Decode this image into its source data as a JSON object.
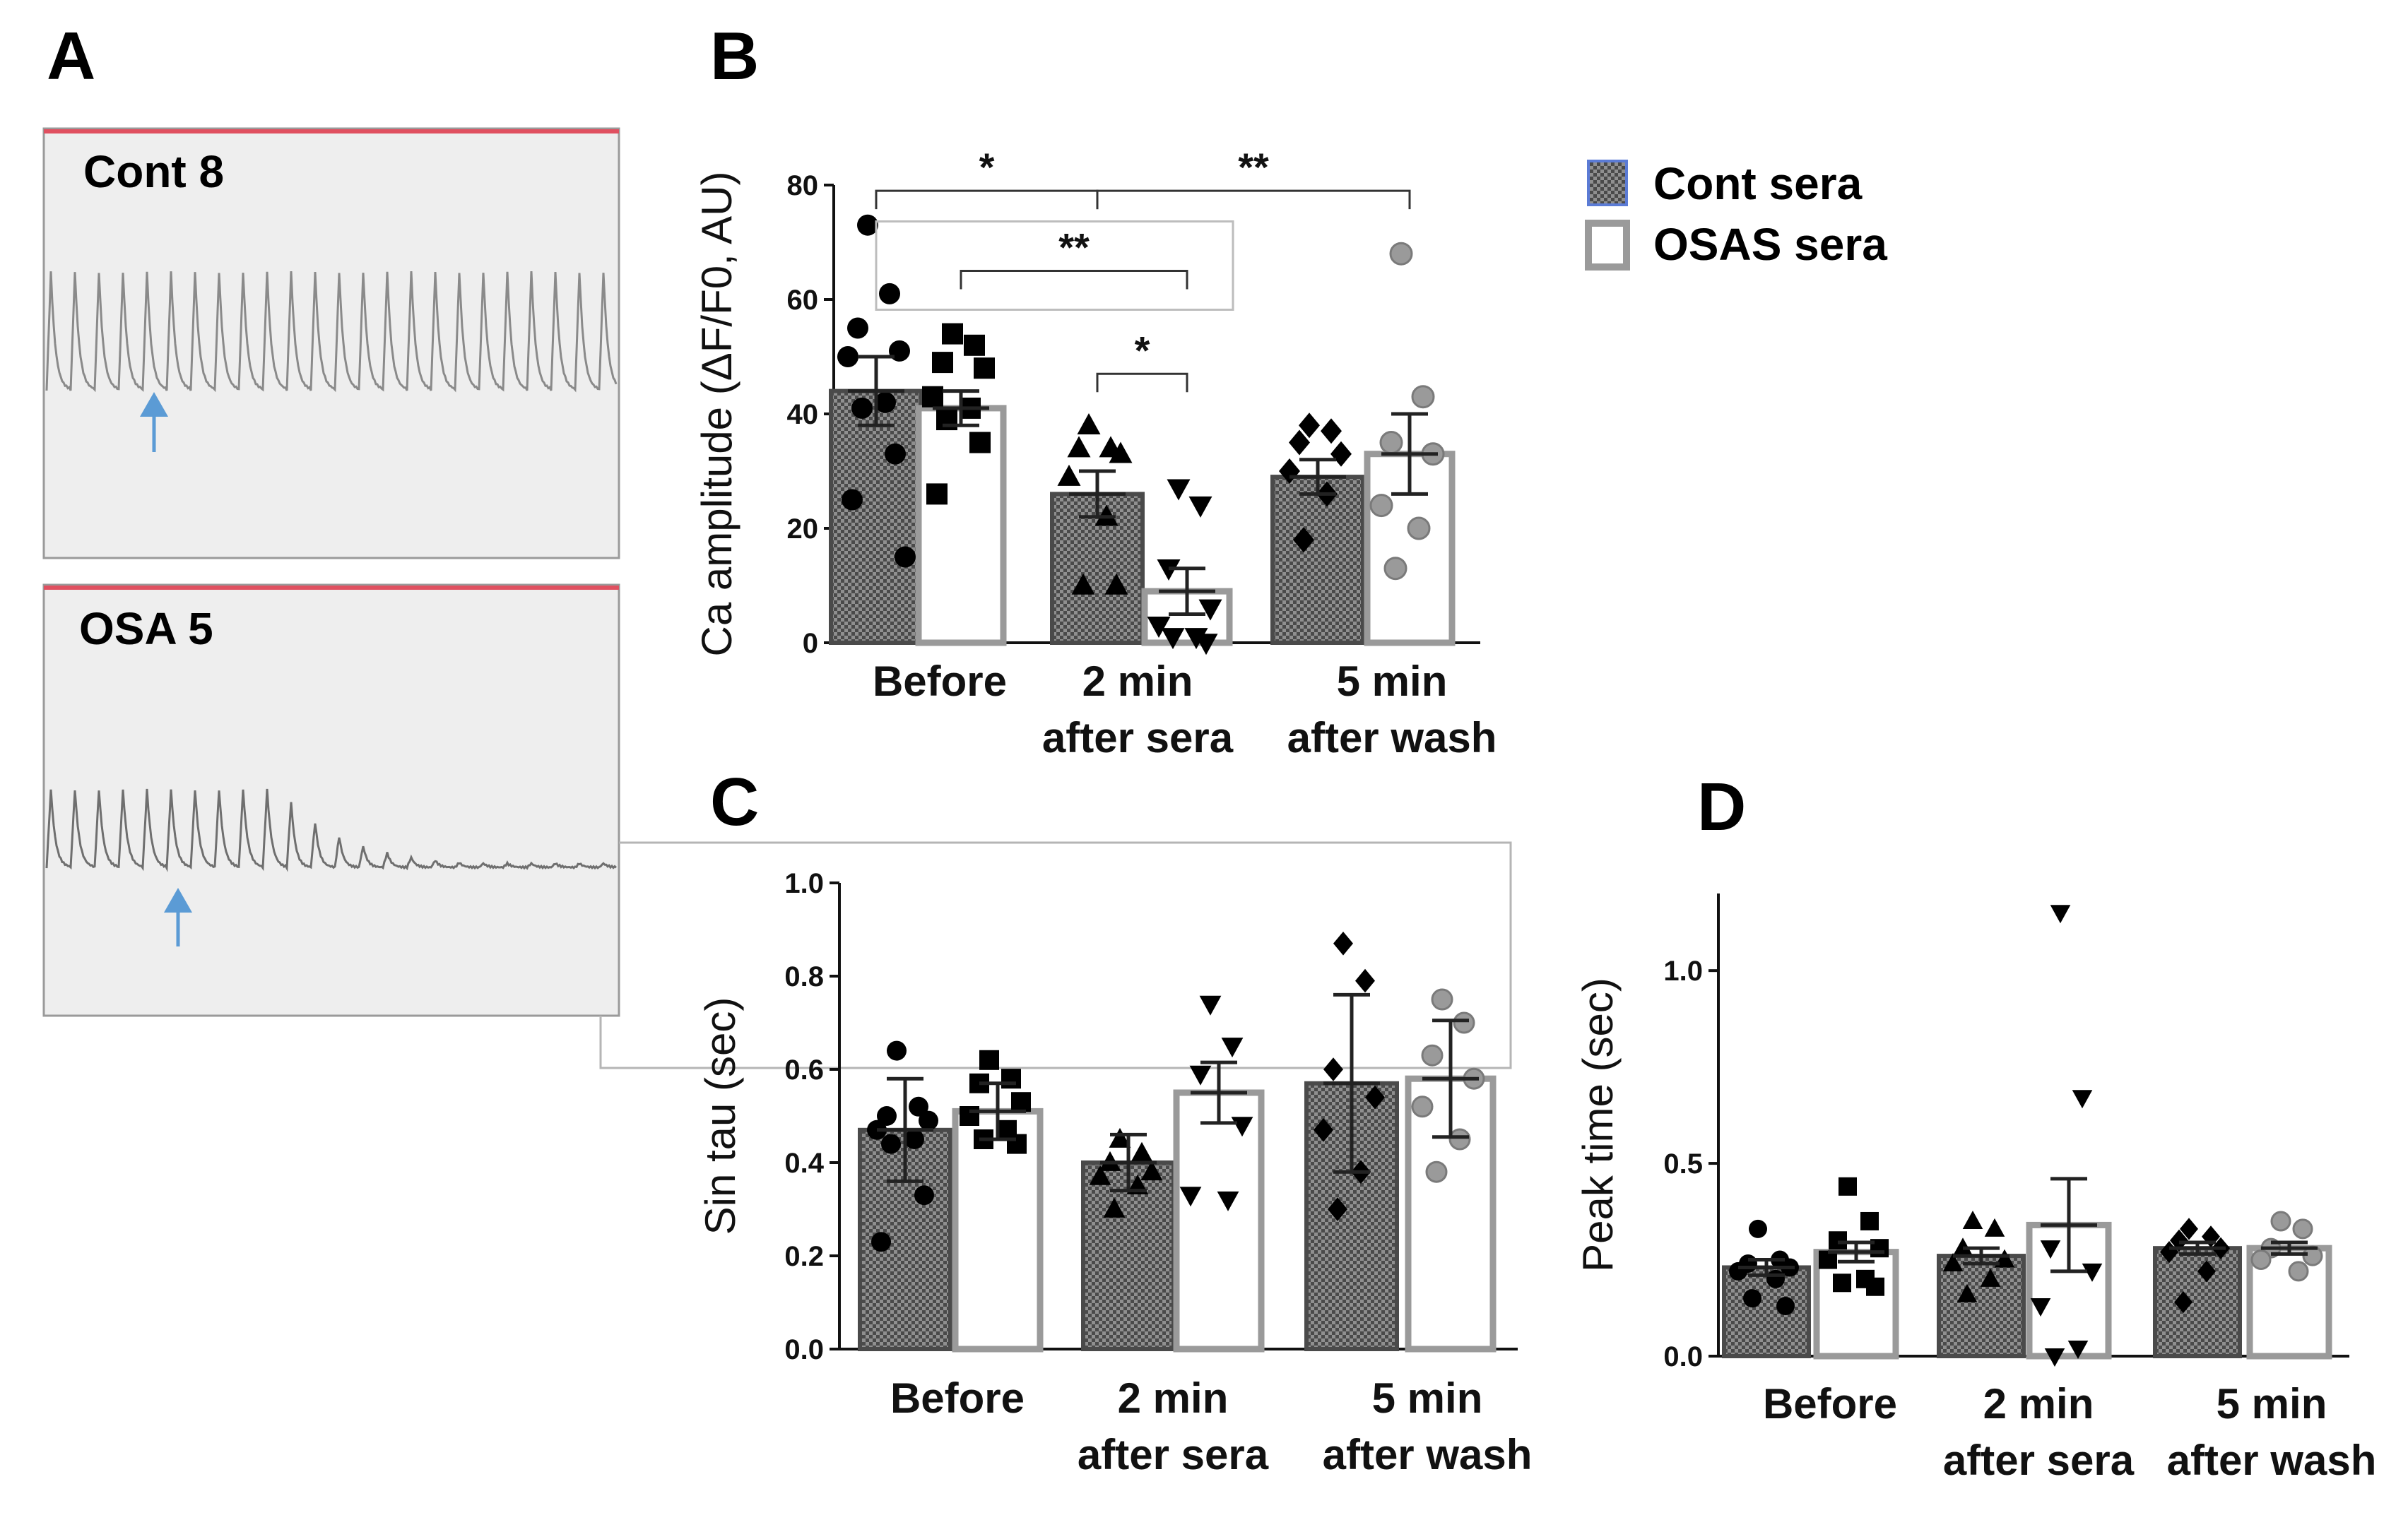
{
  "figure": {
    "panel_labels": [
      "A",
      "B",
      "C",
      "D"
    ]
  },
  "colors": {
    "dark_bar_fill": "#8f8f8f",
    "dark_bar_stroke": "#4a4a4a",
    "open_bar_stroke": "#9a9a9a",
    "axis": "#111111",
    "trace_bg": "#eeeeee",
    "trace_border": "#9a9a9a",
    "trace_topline": "#e05060",
    "trace_line": "#8a8a8a",
    "arrow": "#5b9bd5",
    "gray_marker": "#9a9a9a"
  },
  "legend": {
    "items": [
      {
        "label": "Cont sera",
        "style": "hatched"
      },
      {
        "label": "OSAS sera",
        "style": "open"
      }
    ]
  },
  "traces": [
    {
      "label": "Cont 8",
      "pattern": "sustained"
    },
    {
      "label": "OSA 5",
      "pattern": "decaying"
    }
  ],
  "chart_data": [
    {
      "panel": "B",
      "type": "bar",
      "ylabel": "Ca amplitude  (ΔF/F0, AU)",
      "ylim": [
        0,
        80
      ],
      "yticks": [
        0,
        20,
        40,
        60,
        80
      ],
      "ytick_labels": [
        "0",
        "20",
        "40",
        "60",
        "80"
      ],
      "groups": [
        {
          "line1": "Before",
          "line2": ""
        },
        {
          "line1": "2 min",
          "line2": "after sera"
        },
        {
          "line1": "5 min",
          "line2": "after wash"
        }
      ],
      "series": [
        {
          "name": "Cont sera",
          "style": "hatched",
          "values": [
            44,
            26,
            29
          ],
          "sem": [
            6,
            4,
            3
          ]
        },
        {
          "name": "OSAS sera",
          "style": "open",
          "values": [
            41,
            9,
            33
          ],
          "sem": [
            3,
            4,
            7
          ]
        }
      ],
      "points": [
        {
          "group": 0,
          "series": 0,
          "marker": "circle",
          "values": [
            73,
            61,
            55,
            51,
            50,
            42,
            41,
            33,
            25,
            15
          ]
        },
        {
          "group": 0,
          "series": 1,
          "marker": "square",
          "values": [
            54,
            52,
            49,
            48,
            43,
            41,
            39,
            35,
            26
          ]
        },
        {
          "group": 1,
          "series": 0,
          "marker": "triangle-up",
          "values": [
            38,
            34,
            34,
            33,
            29,
            22,
            10,
            10
          ]
        },
        {
          "group": 1,
          "series": 1,
          "marker": "triangle-down",
          "values": [
            27,
            24,
            13,
            6,
            3,
            1,
            1,
            0
          ]
        },
        {
          "group": 2,
          "series": 0,
          "marker": "diamond",
          "values": [
            38,
            37,
            35,
            33,
            30,
            26,
            18
          ]
        },
        {
          "group": 2,
          "series": 1,
          "marker": "circle-gray",
          "values": [
            68,
            43,
            35,
            33,
            24,
            20,
            13
          ]
        }
      ],
      "significance": [
        {
          "from": [
            0,
            0
          ],
          "to": [
            1,
            0
          ],
          "label": "*",
          "level": 79
        },
        {
          "from": [
            1,
            0
          ],
          "to": [
            2,
            1
          ],
          "label": "**",
          "level": 79
        },
        {
          "from": [
            0,
            1
          ],
          "to": [
            1,
            1
          ],
          "label": "**",
          "level": 65,
          "boxed": true
        },
        {
          "from": [
            1,
            0
          ],
          "to": [
            1,
            1
          ],
          "label": "*",
          "level": 47
        }
      ]
    },
    {
      "panel": "C",
      "type": "bar",
      "ylabel": "Sin tau (sec)",
      "ylim": [
        0,
        1.0
      ],
      "yticks": [
        0,
        0.2,
        0.4,
        0.6,
        0.8,
        1.0
      ],
      "ytick_labels": [
        "0.0",
        "0.2",
        "0.4",
        "0.6",
        "0.8",
        "1.0"
      ],
      "groups": [
        {
          "line1": "Before",
          "line2": ""
        },
        {
          "line1": "2 min",
          "line2": "after sera"
        },
        {
          "line1": "5 min",
          "line2": "after wash"
        }
      ],
      "series": [
        {
          "name": "Cont sera",
          "style": "hatched",
          "values": [
            0.47,
            0.4,
            0.57
          ],
          "sem": [
            0.11,
            0.06,
            0.19
          ]
        },
        {
          "name": "OSAS sera",
          "style": "open",
          "values": [
            0.51,
            0.55,
            0.58
          ],
          "sem": [
            0.06,
            0.065,
            0.125
          ]
        }
      ],
      "points": [
        {
          "group": 0,
          "series": 0,
          "marker": "circle",
          "values": [
            0.64,
            0.52,
            0.5,
            0.49,
            0.47,
            0.45,
            0.44,
            0.33,
            0.23
          ]
        },
        {
          "group": 0,
          "series": 1,
          "marker": "square",
          "values": [
            0.62,
            0.58,
            0.57,
            0.53,
            0.5,
            0.47,
            0.45,
            0.44
          ]
        },
        {
          "group": 1,
          "series": 0,
          "marker": "triangle-up",
          "values": [
            0.45,
            0.42,
            0.4,
            0.38,
            0.37,
            0.35,
            0.3
          ]
        },
        {
          "group": 1,
          "series": 1,
          "marker": "triangle-down",
          "values": [
            0.74,
            0.65,
            0.59,
            0.48,
            0.33,
            0.32
          ]
        },
        {
          "group": 2,
          "series": 0,
          "marker": "diamond",
          "values": [
            0.87,
            0.79,
            0.6,
            0.54,
            0.47,
            0.38,
            0.3
          ]
        },
        {
          "group": 2,
          "series": 1,
          "marker": "circle-gray",
          "values": [
            0.75,
            0.7,
            0.63,
            0.58,
            0.52,
            0.45,
            0.38
          ]
        }
      ]
    },
    {
      "panel": "D",
      "type": "bar",
      "ylabel": "Peak time (sec)",
      "ylim": [
        0,
        1.2
      ],
      "yticks": [
        0,
        0.5,
        1.0
      ],
      "ytick_labels": [
        "0.0",
        "0.5",
        "1.0"
      ],
      "groups": [
        {
          "line1": "Before",
          "line2": ""
        },
        {
          "line1": "2 min",
          "line2": "after sera"
        },
        {
          "line1": "5 min",
          "line2": "after wash"
        }
      ],
      "series": [
        {
          "name": "Cont sera",
          "style": "hatched",
          "values": [
            0.23,
            0.26,
            0.28
          ],
          "sem": [
            0.02,
            0.02,
            0.015
          ]
        },
        {
          "name": "OSAS sera",
          "style": "open",
          "values": [
            0.27,
            0.34,
            0.28
          ],
          "sem": [
            0.025,
            0.12,
            0.015
          ]
        }
      ],
      "points": [
        {
          "group": 0,
          "series": 0,
          "marker": "circle",
          "values": [
            0.33,
            0.25,
            0.24,
            0.23,
            0.22,
            0.2,
            0.15,
            0.13
          ]
        },
        {
          "group": 0,
          "series": 1,
          "marker": "square",
          "values": [
            0.44,
            0.35,
            0.3,
            0.28,
            0.25,
            0.2,
            0.19,
            0.18
          ]
        },
        {
          "group": 1,
          "series": 0,
          "marker": "triangle-up",
          "values": [
            0.35,
            0.33,
            0.28,
            0.25,
            0.24,
            0.2,
            0.16
          ]
        },
        {
          "group": 1,
          "series": 1,
          "marker": "triangle-down",
          "values": [
            1.15,
            0.67,
            0.28,
            0.22,
            0.13,
            0.02,
            0.0
          ]
        },
        {
          "group": 2,
          "series": 0,
          "marker": "diamond",
          "values": [
            0.33,
            0.31,
            0.3,
            0.28,
            0.27,
            0.22,
            0.14
          ]
        },
        {
          "group": 2,
          "series": 1,
          "marker": "circle-gray",
          "values": [
            0.35,
            0.33,
            0.28,
            0.26,
            0.25,
            0.22
          ]
        }
      ]
    }
  ]
}
